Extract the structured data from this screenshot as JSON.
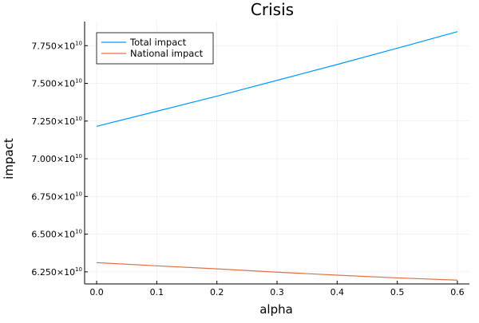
{
  "chart_data": {
    "type": "line",
    "title": "Crisis",
    "xlabel": "alpha",
    "ylabel": "impact",
    "xlim": [
      -0.02,
      0.62
    ],
    "ylim": [
      61700000000,
      79100000000
    ],
    "x_ticks": [
      0.0,
      0.1,
      0.2,
      0.3,
      0.4,
      0.5,
      0.6
    ],
    "x_tick_labels": [
      "0.0",
      "0.1",
      "0.2",
      "0.3",
      "0.4",
      "0.5",
      "0.6"
    ],
    "y_ticks": [
      62500000000,
      65000000000,
      67500000000,
      70000000000,
      72500000000,
      75000000000,
      77500000000
    ],
    "y_tick_labels": [
      {
        "mantissa": "6.250×10",
        "exp": "10"
      },
      {
        "mantissa": "6.500×10",
        "exp": "10"
      },
      {
        "mantissa": "6.750×10",
        "exp": "10"
      },
      {
        "mantissa": "7.000×10",
        "exp": "10"
      },
      {
        "mantissa": "7.250×10",
        "exp": "10"
      },
      {
        "mantissa": "7.500×10",
        "exp": "10"
      },
      {
        "mantissa": "7.750×10",
        "exp": "10"
      }
    ],
    "grid": true,
    "legend_position": "top-left",
    "x": [
      0.0,
      0.1,
      0.2,
      0.3,
      0.4,
      0.5,
      0.6
    ],
    "series": [
      {
        "name": "Total impact",
        "color": "#009af9",
        "values": [
          72150000000,
          73150000000,
          74150000000,
          75200000000,
          76250000000,
          77330000000,
          78430000000
        ]
      },
      {
        "name": "National impact",
        "color": "#e26f46",
        "values": [
          63110000000,
          62900000000,
          62700000000,
          62480000000,
          62280000000,
          62100000000,
          61950000000
        ]
      }
    ]
  }
}
